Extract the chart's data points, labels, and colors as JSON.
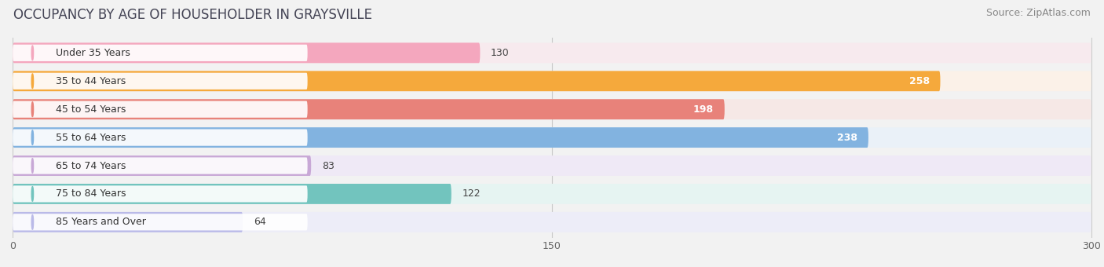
{
  "title": "OCCUPANCY BY AGE OF HOUSEHOLDER IN GRAYSVILLE",
  "source": "Source: ZipAtlas.com",
  "categories": [
    "Under 35 Years",
    "35 to 44 Years",
    "45 to 54 Years",
    "55 to 64 Years",
    "65 to 74 Years",
    "75 to 84 Years",
    "85 Years and Over"
  ],
  "values": [
    130,
    258,
    198,
    238,
    83,
    122,
    64
  ],
  "bar_colors": [
    "#F4A7BE",
    "#F5A93C",
    "#E8827A",
    "#82B3E0",
    "#C8A8D6",
    "#72C4BE",
    "#BABAE8"
  ],
  "bar_bg_colors": [
    "#F7EAEE",
    "#FBF1E8",
    "#F6E8E6",
    "#EAF1F8",
    "#EFE9F6",
    "#E6F4F2",
    "#EDEDF8"
  ],
  "dot_colors": [
    "#F4A7BE",
    "#F5A93C",
    "#E8827A",
    "#82B3E0",
    "#C8A8D6",
    "#72C4BE",
    "#BABAE8"
  ],
  "xlim_data": [
    0,
    300
  ],
  "xticks": [
    0,
    150,
    300
  ],
  "background_color": "#f2f2f2",
  "plot_bg_color": "#ffffff",
  "title_fontsize": 12,
  "source_fontsize": 9,
  "label_fontsize": 9,
  "bar_label_fontsize": 9,
  "value_inside_threshold": 150
}
